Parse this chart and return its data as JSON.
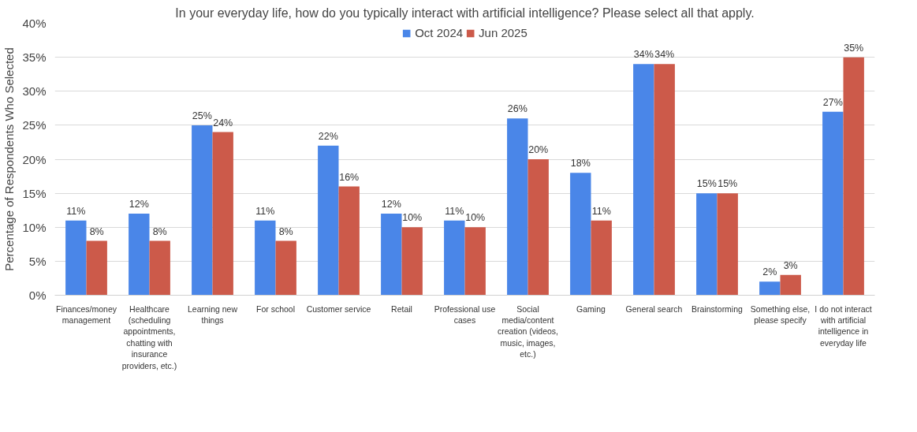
{
  "chart_data": {
    "type": "bar",
    "title": "In your everyday life, how do you typically interact with artificial intelligence? Please select all that apply.",
    "ylabel": "Percentage of Respondents Who Selected",
    "categories": [
      "Finances/money management",
      "Healthcare (scheduling appointments, chatting with insurance providers, etc.)",
      "Learning new things",
      "For school",
      "Customer service",
      "Retail",
      "Professional use cases",
      "Social media/content creation (videos, music, images, etc.)",
      "Gaming",
      "General search",
      "Brainstorming",
      "Something else, please specify",
      "I do not interact with artificial intelligence in everyday life"
    ],
    "series": [
      {
        "name": "Oct 2024",
        "color": "#4a86e8",
        "values": [
          11,
          12,
          25,
          11,
          22,
          12,
          11,
          26,
          18,
          34,
          15,
          2,
          27
        ],
        "value_labels": [
          "11%",
          "12%",
          "25%",
          "11%",
          "22%",
          "12%",
          "11%",
          "26%",
          "18%",
          "34%",
          "15%",
          "2%",
          "27%"
        ]
      },
      {
        "name": "Jun 2025",
        "color": "#cc5a4a",
        "values": [
          8,
          8,
          24,
          8,
          16,
          10,
          10,
          20,
          11,
          34,
          15,
          3,
          35
        ],
        "value_labels": [
          "8%",
          "8%",
          "24%",
          "8%",
          "16%",
          "10%",
          "10%",
          "20%",
          "11%",
          "34%",
          "15%",
          "3%",
          "35%"
        ]
      }
    ],
    "ylim": [
      0,
      40
    ],
    "yticks": [
      {
        "value": 0,
        "label": "0%"
      },
      {
        "value": 5,
        "label": "5%"
      },
      {
        "value": 10,
        "label": "10%"
      },
      {
        "value": 15,
        "label": "15%"
      },
      {
        "value": 20,
        "label": "20%"
      },
      {
        "value": 25,
        "label": "25%"
      },
      {
        "value": 30,
        "label": "30%"
      },
      {
        "value": 35,
        "label": "35%"
      },
      {
        "value": 40,
        "label": "40%"
      }
    ],
    "grid": "y",
    "legend": "top"
  }
}
